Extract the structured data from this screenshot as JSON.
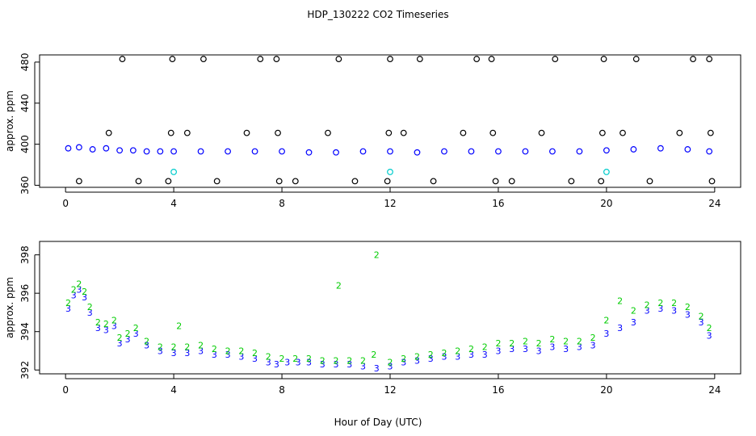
{
  "title": "HDP_130222  CO2 Timeseries",
  "xlabel": "Hour of Day (UTC)",
  "colors": {
    "series1": "#0000ff",
    "series2": "#00cc00",
    "series3": "#00cccc",
    "outlier": "#000000"
  },
  "chart_data": [
    {
      "type": "scatter",
      "ylabel": "approx. ppm",
      "xlim": [
        -0.96,
        24.96
      ],
      "ylim": [
        358,
        487
      ],
      "xticks": [
        0,
        4,
        8,
        12,
        16,
        20,
        24
      ],
      "yticks": [
        360,
        400,
        440,
        480
      ],
      "grid": false,
      "series": [
        {
          "marker": "circle",
          "color": "#0000ff",
          "x": [
            0.1,
            0.5,
            1,
            1.5,
            2,
            2.5,
            3,
            3.5,
            4,
            5,
            6,
            7,
            8,
            9,
            10,
            11,
            12,
            13,
            14,
            15,
            16,
            17,
            18,
            19,
            20,
            21,
            22,
            23,
            23.8
          ],
          "y": [
            396,
            397,
            395,
            396,
            394,
            394,
            393,
            393,
            393,
            393,
            393,
            393,
            393,
            392,
            392,
            393,
            393,
            392,
            393,
            393,
            393,
            393,
            393,
            393,
            394,
            395,
            396,
            395,
            393
          ]
        },
        {
          "marker": "circle",
          "color": "#00cccc",
          "x": [
            4,
            12,
            20
          ],
          "y": [
            373,
            373,
            373
          ]
        },
        {
          "marker": "circle",
          "color": "#000000",
          "x": [
            0.5,
            1.6,
            2.1,
            2.7,
            3.8,
            3.9,
            3.95,
            4.5,
            5.1,
            5.6,
            6.7,
            7.2,
            7.8,
            7.85,
            7.9,
            8.5,
            9.7,
            10.1,
            10.7,
            11.9,
            11.95,
            12.0,
            12.5,
            13.1,
            13.6,
            14.7,
            15.2,
            15.75,
            15.8,
            15.9,
            16.5,
            17.6,
            18.1,
            18.7,
            19.8,
            19.85,
            19.9,
            20.6,
            21.1,
            21.6,
            22.7,
            23.2,
            23.8,
            23.85,
            23.9
          ],
          "y": [
            364,
            411,
            483,
            364,
            364,
            411,
            483,
            411,
            483,
            364,
            411,
            483,
            483,
            411,
            364,
            364,
            411,
            483,
            364,
            364,
            411,
            483,
            411,
            483,
            364,
            411,
            483,
            483,
            411,
            364,
            364,
            411,
            483,
            364,
            364,
            411,
            483,
            411,
            483,
            364,
            411,
            483,
            483,
            411,
            364
          ]
        }
      ]
    },
    {
      "type": "scatter",
      "ylabel": "approx. ppm",
      "xlim": [
        -0.96,
        24.96
      ],
      "ylim": [
        391.8,
        398.7
      ],
      "xticks": [
        0,
        4,
        8,
        12,
        16,
        20,
        24
      ],
      "yticks": [
        392,
        394,
        396,
        398
      ],
      "grid": false,
      "series": [
        {
          "marker": "3",
          "color": "#0000ff",
          "x": [
            0.1,
            0.3,
            0.5,
            0.7,
            0.9,
            1.2,
            1.5,
            1.8,
            2.0,
            2.3,
            2.6,
            3.0,
            3.5,
            4.0,
            4.5,
            5.0,
            5.5,
            6.0,
            6.5,
            7.0,
            7.5,
            7.8,
            8.2,
            8.6,
            9.0,
            9.5,
            10.0,
            10.5,
            11.0,
            11.5,
            12.0,
            12.5,
            13.0,
            13.5,
            14.0,
            14.5,
            15.0,
            15.5,
            16.0,
            16.5,
            17.0,
            17.5,
            18.0,
            18.5,
            19.0,
            19.5,
            20.0,
            20.5,
            21.0,
            21.5,
            22.0,
            22.5,
            23.0,
            23.5,
            23.8
          ],
          "y": [
            395.2,
            395.9,
            396.2,
            395.8,
            395.0,
            394.2,
            394.1,
            394.3,
            393.4,
            393.6,
            393.9,
            393.3,
            393.0,
            392.9,
            392.9,
            393.0,
            392.8,
            392.8,
            392.7,
            392.6,
            392.4,
            392.3,
            392.4,
            392.4,
            392.4,
            392.3,
            392.3,
            392.3,
            392.2,
            392.1,
            392.2,
            392.4,
            392.5,
            392.6,
            392.7,
            392.7,
            392.8,
            392.8,
            393.0,
            393.1,
            393.1,
            393.0,
            393.2,
            393.1,
            393.2,
            393.3,
            393.9,
            394.2,
            394.5,
            395.1,
            395.2,
            395.1,
            394.9,
            394.5,
            393.8
          ]
        },
        {
          "marker": "2",
          "color": "#00cc00",
          "x": [
            0.1,
            0.3,
            0.5,
            0.7,
            0.9,
            1.2,
            1.5,
            1.8,
            2.0,
            2.3,
            2.6,
            3.0,
            3.5,
            4.0,
            4.2,
            4.5,
            5.0,
            5.5,
            6.0,
            6.5,
            7.0,
            7.5,
            8.0,
            8.5,
            9.0,
            9.5,
            10.0,
            10.1,
            10.5,
            11.0,
            11.4,
            11.5,
            12.0,
            12.5,
            13.0,
            13.5,
            14.0,
            14.5,
            15.0,
            15.5,
            16.0,
            16.5,
            17.0,
            17.5,
            18.0,
            18.5,
            19.0,
            19.5,
            20.0,
            20.5,
            21.0,
            21.5,
            22.0,
            22.5,
            23.0,
            23.5,
            23.8
          ],
          "y": [
            395.5,
            396.2,
            396.5,
            396.1,
            395.3,
            394.5,
            394.4,
            394.6,
            393.7,
            393.9,
            394.2,
            393.5,
            393.2,
            393.2,
            394.3,
            393.2,
            393.3,
            393.1,
            393.0,
            393.0,
            392.9,
            392.7,
            392.6,
            392.6,
            392.6,
            392.5,
            392.5,
            396.4,
            392.5,
            392.5,
            392.8,
            398.0,
            392.4,
            392.6,
            392.7,
            392.8,
            392.9,
            393.0,
            393.1,
            393.2,
            393.4,
            393.4,
            393.5,
            393.4,
            393.6,
            393.5,
            393.5,
            393.7,
            394.6,
            395.6,
            395.1,
            395.4,
            395.5,
            395.5,
            395.3,
            394.8,
            394.2
          ]
        }
      ]
    }
  ]
}
